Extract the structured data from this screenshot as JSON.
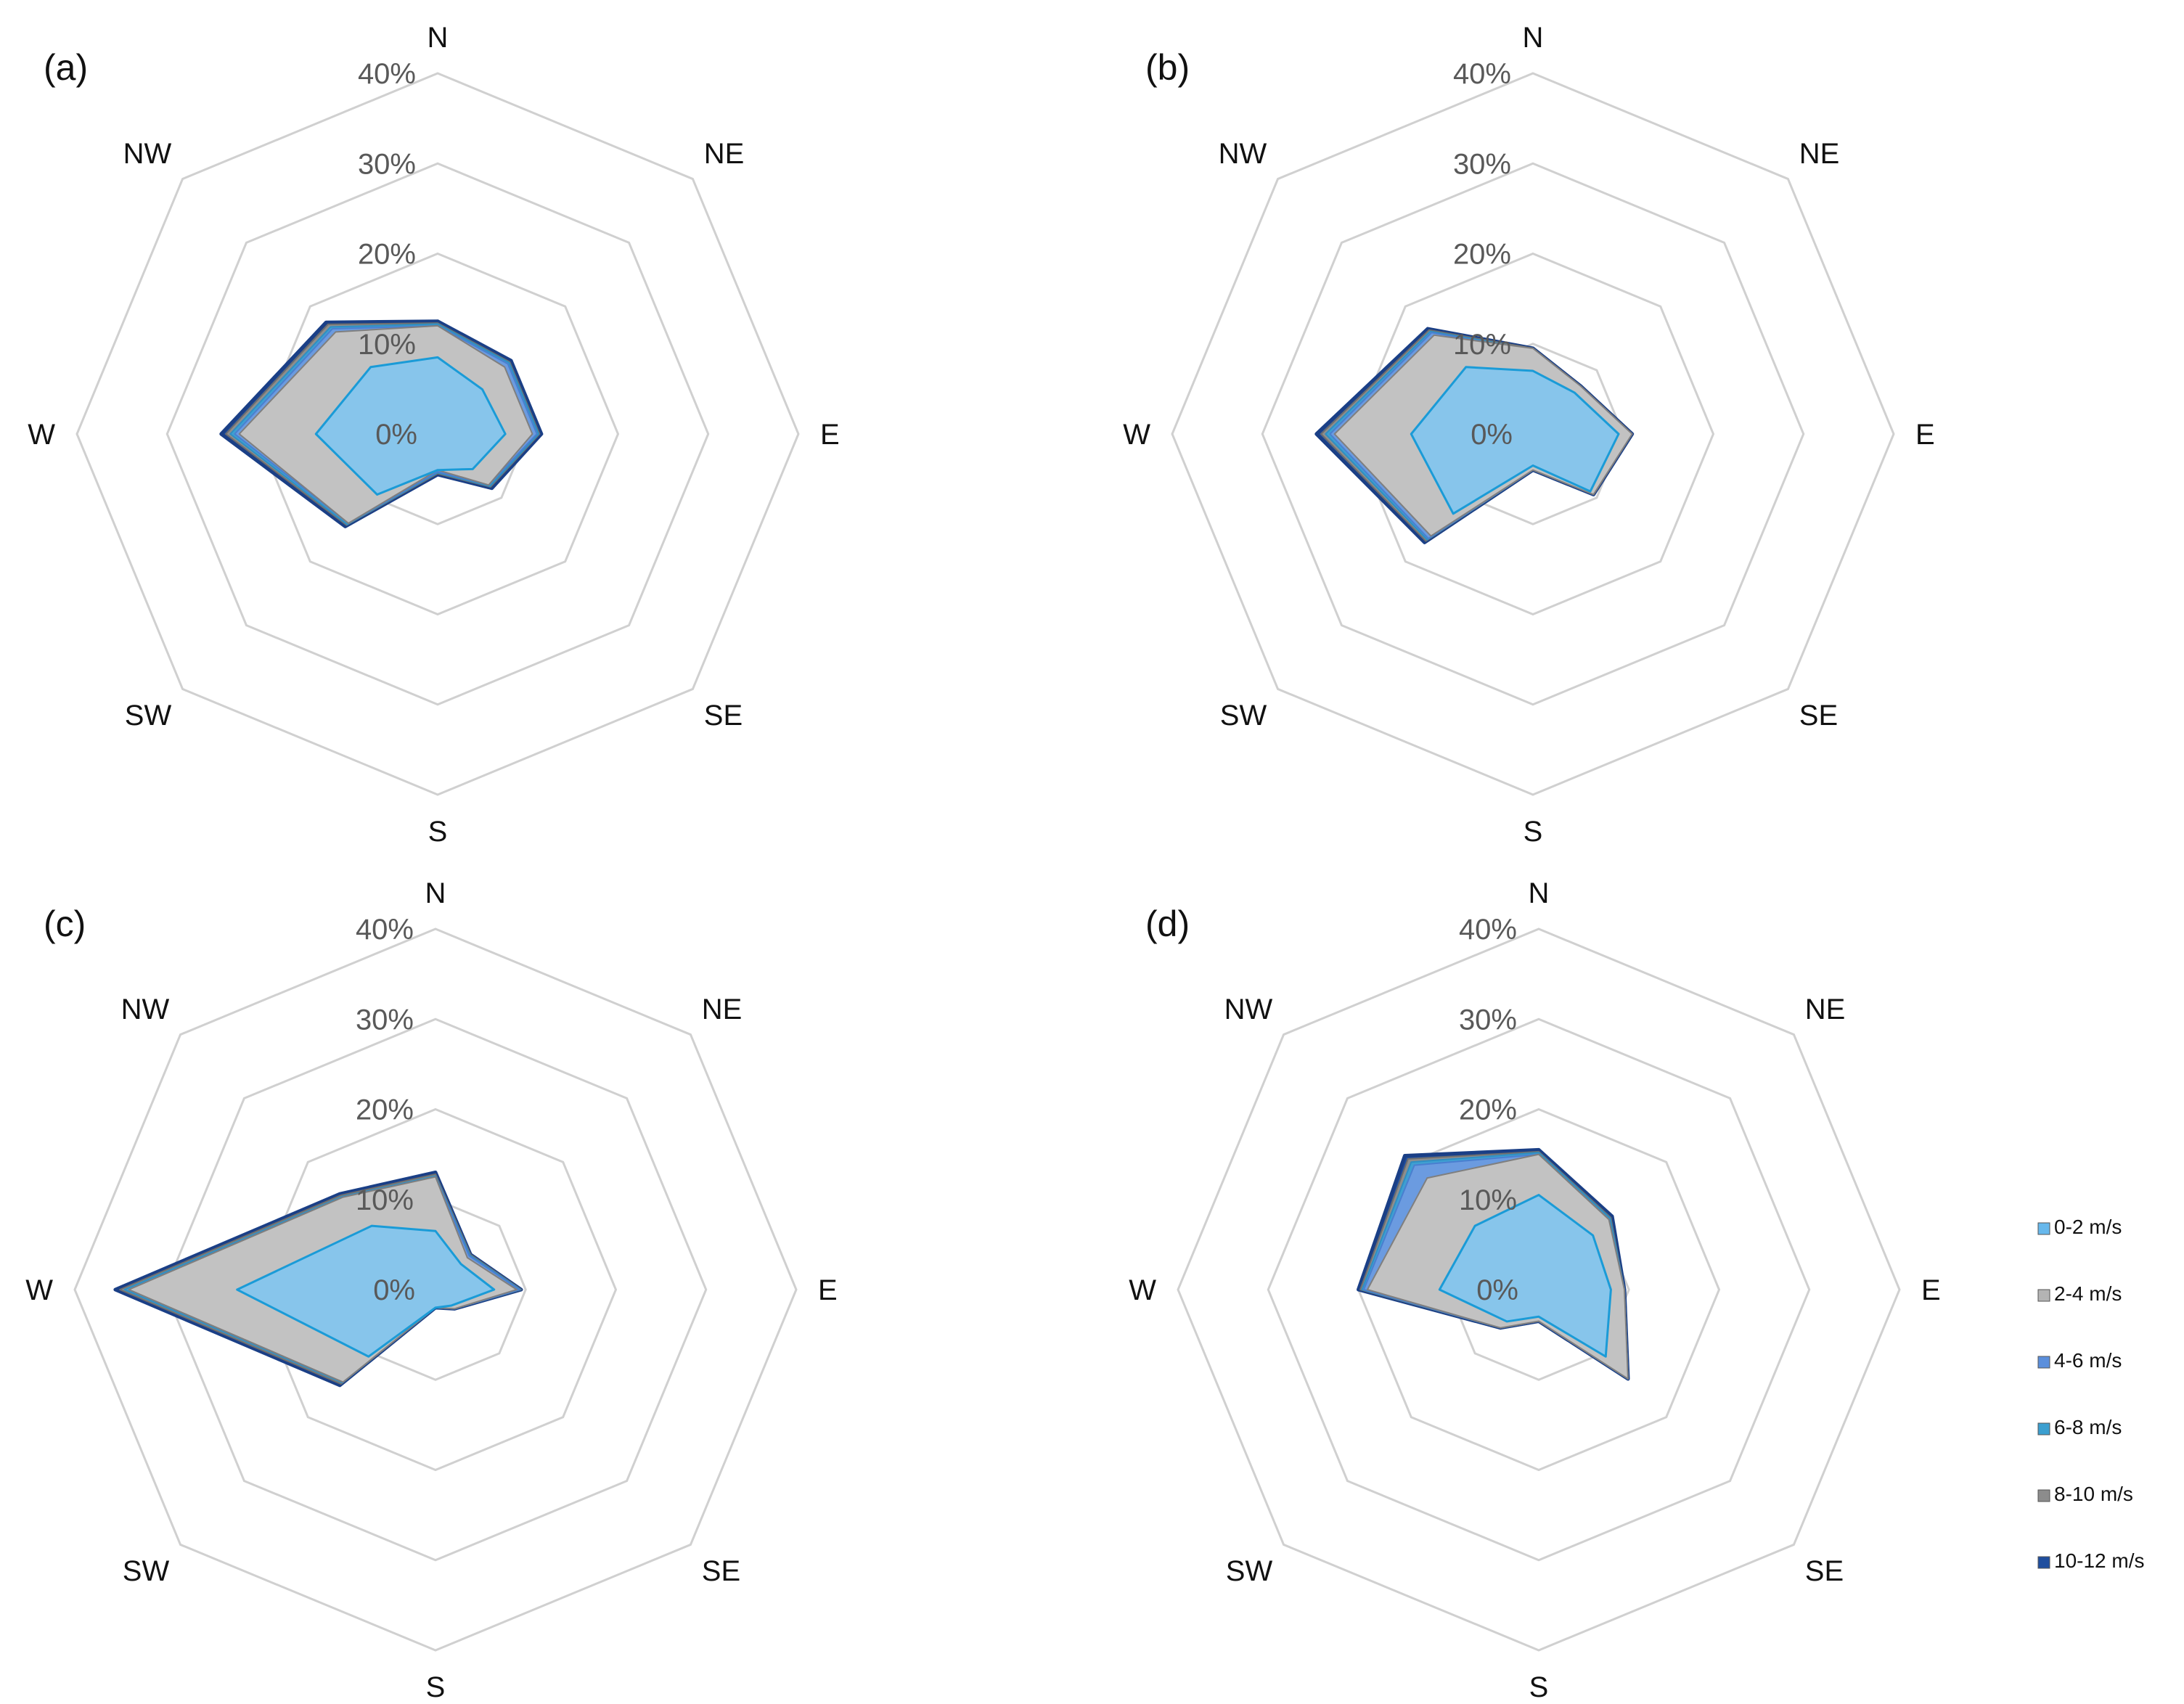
{
  "chart_data": {
    "type": "radar",
    "directions": [
      "N",
      "NE",
      "E",
      "SE",
      "S",
      "SW",
      "W",
      "NW"
    ],
    "axis_ticks": [
      "0%",
      "10%",
      "20%",
      "30%",
      "40%"
    ],
    "rmax": 40,
    "legend": [
      {
        "name": "0-2 m/s",
        "color": "#67b8ec"
      },
      {
        "name": "2-4 m/s",
        "color": "#b4b4b4"
      },
      {
        "name": "4-6 m/s",
        "color": "#5b8fdc"
      },
      {
        "name": "6-8 m/s",
        "color": "#3b9fd0"
      },
      {
        "name": "8-10 m/s",
        "color": "#8c8c8c"
      },
      {
        "name": "10-12 m/s",
        "color": "#1f4e9e"
      }
    ],
    "panels": [
      {
        "label": "(a)",
        "series": [
          {
            "name": "10-12 m/s",
            "values": [
              12.5,
              11.5,
              11.5,
              8.5,
              4.5,
              14.5,
              24.0,
              17.5
            ]
          },
          {
            "name": "8-10 m/s",
            "values": [
              12.3,
              11.3,
              11.3,
              8.3,
              4.4,
              14.3,
              23.5,
              17.2
            ]
          },
          {
            "name": "6-8 m/s",
            "values": [
              12.2,
              11.2,
              11.2,
              8.2,
              4.3,
              14.2,
              23.0,
              16.8
            ]
          },
          {
            "name": "4-6 m/s",
            "values": [
              12.0,
              11.0,
              11.0,
              8.0,
              4.2,
              14.0,
              22.5,
              16.5
            ]
          },
          {
            "name": "2-4 m/s",
            "values": [
              12.0,
              10.5,
              10.5,
              8.0,
              4.0,
              14.0,
              22.0,
              16.0
            ]
          },
          {
            "name": "0-2 m/s",
            "values": [
              8.5,
              7.0,
              7.5,
              5.5,
              4.0,
              9.5,
              13.5,
              10.5
            ]
          }
        ]
      },
      {
        "label": "(b)",
        "series": [
          {
            "name": "10-12 m/s",
            "values": [
              9.5,
              7.5,
              11.0,
              9.5,
              4.0,
              17.0,
              24.0,
              16.5
            ]
          },
          {
            "name": "8-10 m/s",
            "values": [
              9.5,
              7.5,
              11.0,
              9.5,
              4.0,
              16.8,
              23.5,
              16.3
            ]
          },
          {
            "name": "6-8 m/s",
            "values": [
              9.4,
              7.4,
              10.9,
              9.4,
              4.0,
              16.6,
              23.0,
              16.1
            ]
          },
          {
            "name": "4-6 m/s",
            "values": [
              9.3,
              7.3,
              10.8,
              9.3,
              4.0,
              16.4,
              22.5,
              15.9
            ]
          },
          {
            "name": "2-4 m/s",
            "values": [
              9.5,
              7.5,
              11.0,
              9.5,
              4.0,
              16.0,
              22.0,
              15.5
            ]
          },
          {
            "name": "0-2 m/s",
            "values": [
              7.0,
              6.5,
              9.5,
              9.0,
              3.5,
              12.5,
              13.5,
              10.5
            ]
          }
        ]
      },
      {
        "label": "(c)",
        "series": [
          {
            "name": "10-12 m/s",
            "values": [
              13.0,
              5.5,
              9.5,
              3.0,
              2.0,
              15.0,
              35.5,
              15.0
            ]
          },
          {
            "name": "8-10 m/s",
            "values": [
              12.8,
              5.5,
              9.5,
              3.0,
              2.0,
              14.8,
              35.0,
              14.8
            ]
          },
          {
            "name": "6-8 m/s",
            "values": [
              12.6,
              5.4,
              9.4,
              3.0,
              2.0,
              14.6,
              34.5,
              14.6
            ]
          },
          {
            "name": "4-6 m/s",
            "values": [
              12.5,
              5.3,
              9.3,
              3.0,
              2.0,
              14.5,
              34.0,
              14.5
            ]
          },
          {
            "name": "2-4 m/s",
            "values": [
              12.5,
              5.0,
              9.0,
              3.0,
              2.0,
              14.5,
              34.0,
              14.5
            ]
          },
          {
            "name": "0-2 m/s",
            "values": [
              6.5,
              4.0,
              6.5,
              2.5,
              2.0,
              10.5,
              22.0,
              10.0
            ]
          }
        ]
      },
      {
        "label": "(d)",
        "series": [
          {
            "name": "10-12 m/s",
            "values": [
              15.5,
              11.5,
              9.5,
              14.0,
              3.5,
              6.0,
              20.0,
              21.0
            ]
          },
          {
            "name": "8-10 m/s",
            "values": [
              15.3,
              11.3,
              9.5,
              14.0,
              3.5,
              6.0,
              19.8,
              20.5
            ]
          },
          {
            "name": "6-8 m/s",
            "values": [
              15.2,
              11.2,
              9.5,
              14.0,
              3.5,
              6.0,
              19.6,
              20.0
            ]
          },
          {
            "name": "4-6 m/s",
            "values": [
              15.0,
              11.0,
              9.5,
              14.0,
              3.5,
              6.0,
              19.4,
              19.5
            ]
          },
          {
            "name": "2-4 m/s",
            "values": [
              15.0,
              11.0,
              9.5,
              14.0,
              3.5,
              6.0,
              19.0,
              17.5
            ]
          },
          {
            "name": "0-2 m/s",
            "values": [
              10.5,
              8.5,
              8.0,
              10.5,
              3.0,
              5.0,
              11.0,
              10.0
            ]
          }
        ]
      }
    ]
  }
}
